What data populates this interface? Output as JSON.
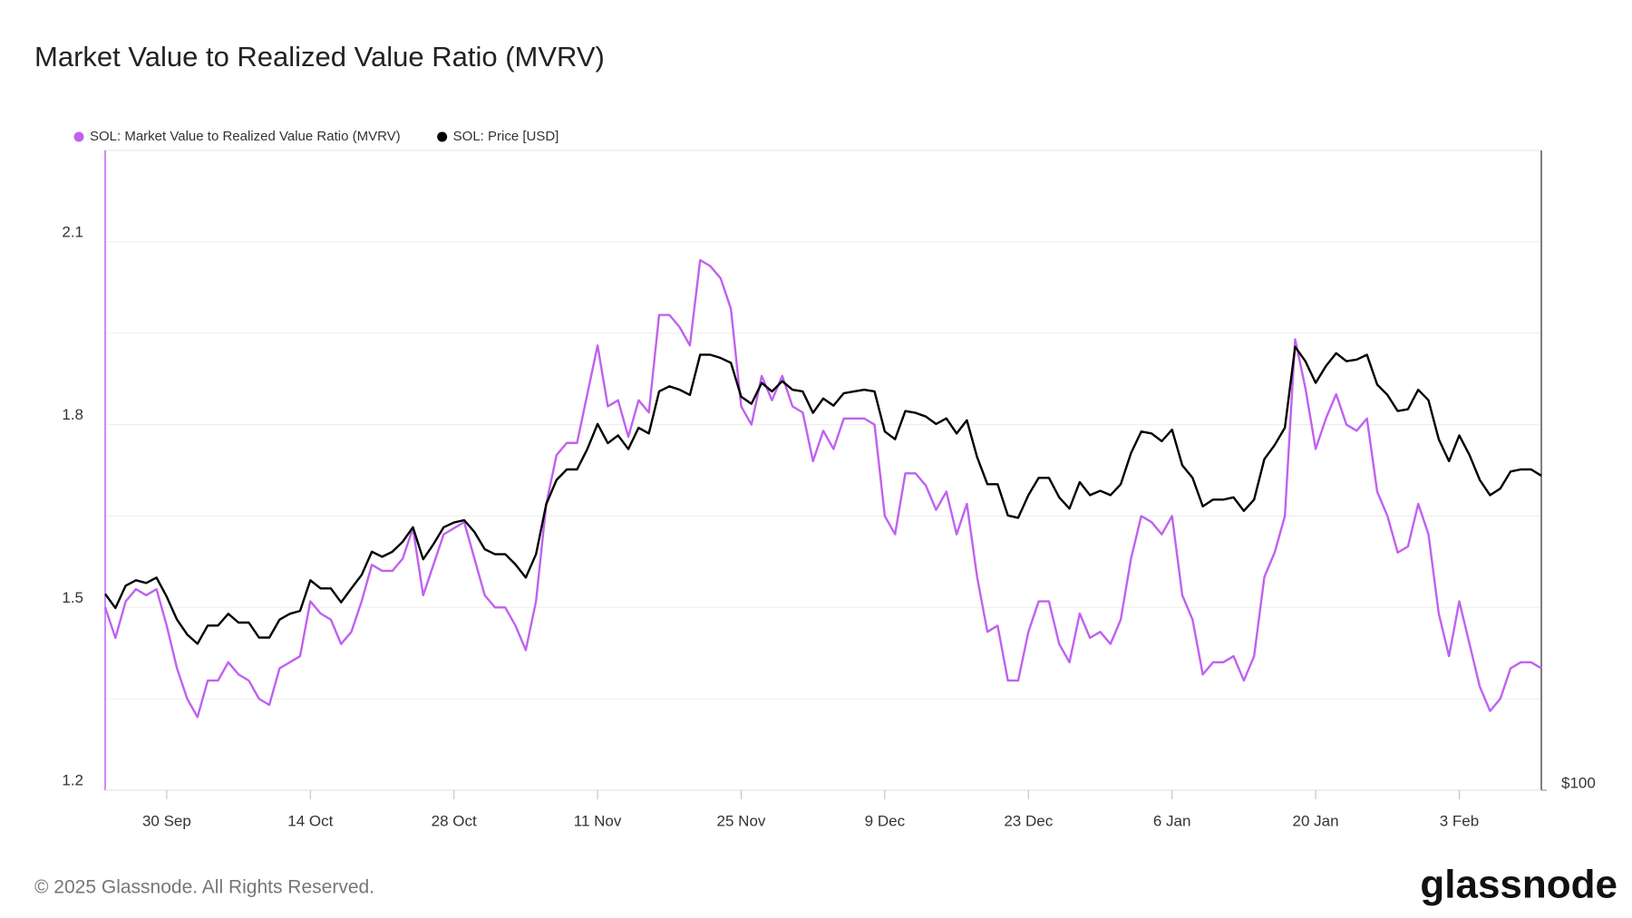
{
  "chart_data": {
    "type": "line",
    "title": "Market Value to Realized Value Ratio (MVRV)",
    "copyright": "© 2025 Glassnode. All Rights Reserved.",
    "brand": "glassnode",
    "legend": "top-left",
    "grid": true,
    "categories": [
      null,
      null,
      null,
      null,
      null,
      null,
      "30 Sep",
      null,
      null,
      null,
      null,
      null,
      null,
      null,
      null,
      null,
      null,
      null,
      null,
      null,
      "14 Oct",
      null,
      null,
      null,
      null,
      null,
      null,
      null,
      null,
      null,
      null,
      null,
      null,
      null,
      "28 Oct",
      null,
      null,
      null,
      null,
      null,
      null,
      null,
      null,
      null,
      null,
      null,
      null,
      null,
      "11 Nov",
      null,
      null,
      null,
      null,
      null,
      null,
      null,
      null,
      null,
      null,
      null,
      null,
      null,
      "25 Nov",
      null,
      null,
      null,
      null,
      null,
      null,
      null,
      null,
      null,
      null,
      null,
      null,
      null,
      "9 Dec",
      null,
      null,
      null,
      null,
      null,
      null,
      null,
      null,
      null,
      null,
      null,
      null,
      null,
      "23 Dec",
      null,
      null,
      null,
      null,
      null,
      null,
      null,
      null,
      null,
      null,
      null,
      null,
      null,
      "6 Jan",
      null,
      null,
      null,
      null,
      null,
      null,
      null,
      null,
      null,
      null,
      null,
      null,
      null,
      "20 Jan",
      null,
      null,
      null,
      null,
      null,
      null,
      null,
      null,
      null,
      null,
      null,
      null,
      null,
      "3 Feb",
      null,
      null,
      null,
      null,
      null,
      null,
      null,
      null
    ],
    "ylim": [
      1.2,
      2.25
    ],
    "yticks": [
      1.2,
      1.5,
      1.8,
      2.1
    ],
    "minor_grid": [
      1.35,
      1.65,
      1.95
    ],
    "y2lim": [
      100,
      435
    ],
    "y2log": true,
    "y2ticks": [
      {
        "value": 100,
        "label": "$100"
      }
    ],
    "series": [
      {
        "name": "SOL: Market Value to Realized Value Ratio (MVRV)",
        "color": "#c061f0",
        "values": [
          1.5,
          1.45,
          1.51,
          1.53,
          1.52,
          1.53,
          1.47,
          1.4,
          1.35,
          1.32,
          1.38,
          1.38,
          1.41,
          1.39,
          1.38,
          1.35,
          1.34,
          1.4,
          1.41,
          1.42,
          1.51,
          1.49,
          1.48,
          1.44,
          1.46,
          1.51,
          1.57,
          1.56,
          1.56,
          1.58,
          1.63,
          1.52,
          1.57,
          1.62,
          1.63,
          1.64,
          1.58,
          1.52,
          1.5,
          1.5,
          1.47,
          1.43,
          1.51,
          1.67,
          1.75,
          1.77,
          1.77,
          1.85,
          1.93,
          1.83,
          1.84,
          1.78,
          1.84,
          1.82,
          1.98,
          1.98,
          1.96,
          1.93,
          2.07,
          2.06,
          2.04,
          1.99,
          1.83,
          1.8,
          1.88,
          1.84,
          1.88,
          1.83,
          1.82,
          1.74,
          1.79,
          1.76,
          1.81,
          1.81,
          1.81,
          1.8,
          1.65,
          1.62,
          1.72,
          1.72,
          1.7,
          1.66,
          1.69,
          1.62,
          1.67,
          1.55,
          1.46,
          1.47,
          1.38,
          1.38,
          1.46,
          1.51,
          1.51,
          1.44,
          1.41,
          1.49,
          1.45,
          1.46,
          1.44,
          1.48,
          1.58,
          1.65,
          1.64,
          1.62,
          1.65,
          1.52,
          1.48,
          1.39,
          1.41,
          1.41,
          1.42,
          1.38,
          1.42,
          1.55,
          1.59,
          1.65,
          1.94,
          1.86,
          1.76,
          1.81,
          1.85,
          1.8,
          1.79,
          1.81,
          1.69,
          1.65,
          1.59,
          1.6,
          1.67,
          1.62,
          1.49,
          1.42,
          1.51,
          1.44,
          1.37,
          1.33,
          1.35,
          1.4,
          1.41,
          1.41,
          1.4
        ]
      },
      {
        "name": "SOL: Price [USD]",
        "color": "#000000",
        "axis": "y2",
        "values": [
          157,
          152,
          160,
          162,
          161,
          163,
          156,
          148,
          143,
          140,
          146,
          146,
          150,
          147,
          147,
          142,
          142,
          148,
          150,
          151,
          162,
          159,
          159,
          154,
          159,
          164,
          173,
          171,
          173,
          177,
          183,
          170,
          176,
          183,
          185,
          186,
          181,
          174,
          172,
          172,
          168,
          163,
          172,
          193,
          204,
          209,
          209,
          219,
          232,
          222,
          226,
          219,
          230,
          227,
          250,
          253,
          251,
          248,
          272,
          272,
          270,
          267,
          247,
          243,
          255,
          250,
          256,
          251,
          250,
          238,
          246,
          242,
          249,
          250,
          251,
          250,
          228,
          224,
          239,
          238,
          236,
          232,
          235,
          227,
          234,
          215,
          202,
          202,
          188,
          187,
          197,
          205,
          205,
          196,
          191,
          203,
          197,
          199,
          197,
          202,
          217,
          228,
          227,
          223,
          229,
          211,
          205,
          192,
          195,
          195,
          196,
          190,
          195,
          214,
          221,
          230,
          277,
          268,
          255,
          265,
          273,
          268,
          269,
          272,
          254,
          248,
          239,
          240,
          251,
          245,
          224,
          213,
          226,
          216,
          204,
          197,
          200,
          208,
          209,
          209,
          206
        ]
      }
    ]
  }
}
